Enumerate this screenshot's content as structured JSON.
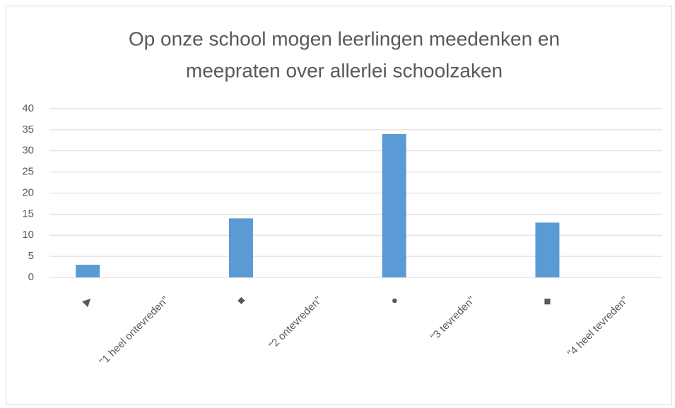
{
  "chart_data": {
    "type": "bar",
    "title": [
      "Op onze school mogen leerlingen meedenken en",
      "meepraten over allerlei schoolzaken"
    ],
    "categories": [
      "▶",
      "\"1 heel ontevreden\"",
      "■",
      "\"2 ontevreden\"",
      "●",
      "\"3 tevreden\"",
      "◆",
      "\"4 heel tevreden\""
    ],
    "values": [
      3,
      null,
      14,
      null,
      34,
      null,
      13,
      null
    ],
    "color": "#5b9bd5",
    "ylim": [
      0,
      40
    ],
    "yticks": [
      0,
      5,
      10,
      15,
      20,
      25,
      30,
      35,
      40
    ],
    "grid": true
  }
}
